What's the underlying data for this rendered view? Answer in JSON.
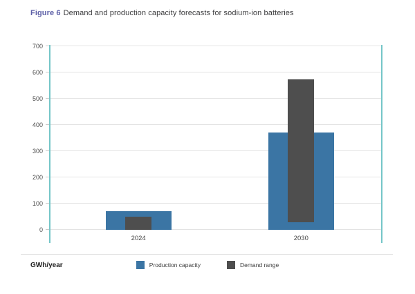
{
  "title": {
    "prefix": "Figure 6",
    "text": "Demand and production capacity forecasts for sodium-ion batteries"
  },
  "axis": {
    "unit_label": "GWh/year"
  },
  "legend": [
    {
      "label": "Production capacity",
      "color": "#3b75a4"
    },
    {
      "label": "Demand range",
      "color": "#4e4e4e"
    }
  ],
  "colors": {
    "title_accent": "#5c5fa7",
    "production_blue": "#3b75a4",
    "demand_gray": "#4e4e4e",
    "axis_teal": "#74c6c8",
    "gridline": "#e3e3e3"
  },
  "chart_data": {
    "type": "bar",
    "title": "Figure 6 Demand and production capacity forecasts for sodium-ion batteries",
    "categories": [
      "2024",
      "2030"
    ],
    "series": [
      {
        "name": "Production capacity",
        "type": "bar",
        "values": [
          70,
          370
        ],
        "color": "#3b75a4"
      },
      {
        "name": "Demand range",
        "type": "range-bar",
        "ranges": [
          [
            0,
            50
          ],
          [
            30,
            575
          ]
        ],
        "color": "#4e4e4e"
      }
    ],
    "xlabel": "",
    "ylabel": "GWh/year",
    "ylim": [
      0,
      700
    ],
    "ytick_step": 100,
    "yticks": [
      0,
      100,
      200,
      300,
      400,
      500,
      600,
      700
    ],
    "grid": true,
    "legend_position": "bottom"
  }
}
